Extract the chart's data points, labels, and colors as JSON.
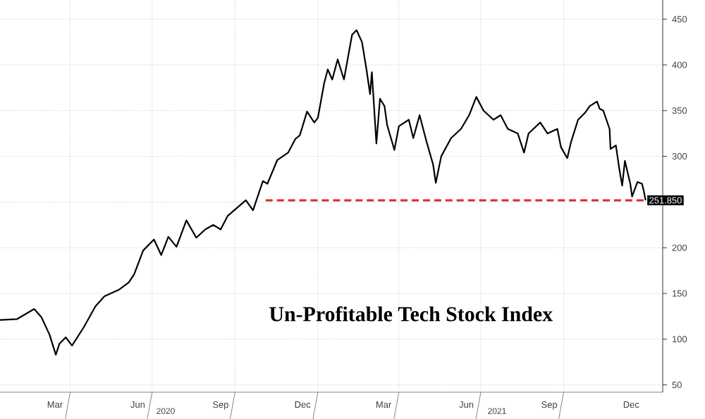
{
  "chart_data": {
    "type": "line",
    "title": "Un-Profitable Tech Stock Index",
    "xlim": [
      "2020-01-14",
      "2022-01-19"
    ],
    "ylim": [
      42,
      471
    ],
    "yticks": [
      50,
      100,
      150,
      200,
      {
        "value": 250,
        "label": null
      },
      300,
      350,
      400,
      450
    ],
    "xticks": [
      {
        "value": "2020-03-15",
        "label": "Mar"
      },
      {
        "value": "2020-04-01",
        "label": null
      },
      {
        "value": "2020-06-15",
        "label": "Jun"
      },
      {
        "value": "2020-07-01",
        "label": null
      },
      {
        "value": "2020-09-15",
        "label": "Sep"
      },
      {
        "value": "2020-10-01",
        "label": null
      },
      {
        "value": "2020-12-15",
        "label": "Dec"
      },
      {
        "value": "2021-01-01",
        "label": null
      },
      {
        "value": "2021-03-15",
        "label": "Mar"
      },
      {
        "value": "2021-04-01",
        "label": null
      },
      {
        "value": "2021-06-15",
        "label": "Jun"
      },
      {
        "value": "2021-07-01",
        "label": null
      },
      {
        "value": "2021-09-15",
        "label": "Sep"
      },
      {
        "value": "2021-10-01",
        "label": null
      },
      {
        "value": "2021-12-15",
        "label": "Dec"
      }
    ],
    "annotations": [
      "2020",
      "2021"
    ],
    "grid": true,
    "marker": "none",
    "series": [
      {
        "color": "#000000",
        "line_style": "solid",
        "x": [
          "2020-01-14",
          "2020-02-02",
          "2020-02-21",
          "2020-02-29",
          "2020-03-09",
          "2020-03-16",
          "2020-03-20",
          "2020-03-27",
          "2020-04-03",
          "2020-04-16",
          "2020-04-29",
          "2020-05-09",
          "2020-05-25",
          "2020-06-05",
          "2020-06-11",
          "2020-06-21",
          "2020-07-03",
          "2020-07-11",
          "2020-07-19",
          "2020-07-28",
          "2020-08-08",
          "2020-08-19",
          "2020-08-29",
          "2020-09-07",
          "2020-09-15",
          "2020-09-23",
          "2020-10-06",
          "2020-10-13",
          "2020-10-21",
          "2020-11-01",
          "2020-11-06",
          "2020-11-17",
          "2020-11-29",
          "2020-12-07",
          "2020-12-12",
          "2020-12-20",
          "2020-12-28",
          "2021-01-01",
          "2021-01-08",
          "2021-01-12",
          "2021-01-17",
          "2021-01-23",
          "2021-01-30",
          "2021-02-08",
          "2021-02-13",
          "2021-02-19",
          "2021-02-24",
          "2021-02-28",
          "2021-03-02",
          "2021-03-07",
          "2021-03-11",
          "2021-03-16",
          "2021-03-19",
          "2021-03-27",
          "2021-04-01",
          "2021-04-12",
          "2021-04-17",
          "2021-04-24",
          "2021-05-02",
          "2021-05-09",
          "2021-05-12",
          "2021-05-18",
          "2021-05-29",
          "2021-06-09",
          "2021-06-18",
          "2021-06-26",
          "2021-07-04",
          "2021-07-15",
          "2021-07-23",
          "2021-07-31",
          "2021-08-11",
          "2021-08-18",
          "2021-08-23",
          "2021-09-05",
          "2021-09-13",
          "2021-09-24",
          "2021-09-28",
          "2021-10-05",
          "2021-10-09",
          "2021-10-17",
          "2021-10-25",
          "2021-10-30",
          "2021-11-07",
          "2021-11-10",
          "2021-11-14",
          "2021-11-21",
          "2021-11-22",
          "2021-11-28",
          "2021-12-02",
          "2021-12-05",
          "2021-12-08",
          "2021-12-14",
          "2021-12-16",
          "2021-12-22",
          "2021-12-27",
          "2021-12-29",
          "2021-12-31"
        ],
        "values": [
          121,
          122,
          133,
          124,
          105,
          83,
          95,
          102,
          93,
          113,
          136,
          147,
          154,
          162,
          171,
          197,
          209,
          192,
          212,
          201,
          230,
          211,
          220,
          225,
          220,
          235,
          246,
          252,
          241,
          273,
          270,
          296,
          304,
          319,
          323,
          349,
          337,
          342,
          380,
          395,
          384,
          406,
          384,
          433,
          438,
          425,
          395,
          368,
          392,
          314,
          363,
          355,
          334,
          307,
          333,
          340,
          320,
          345,
          315,
          291,
          271,
          300,
          320,
          330,
          345,
          365,
          350,
          340,
          345,
          330,
          325,
          304,
          325,
          337,
          325,
          330,
          310,
          298,
          315,
          340,
          348,
          355,
          360,
          352,
          350,
          330,
          308,
          312,
          285,
          268,
          295,
          270,
          256,
          272,
          270,
          262,
          251.85
        ],
        "value_labels": [
          null,
          null,
          null,
          null,
          null,
          null,
          null,
          null,
          null,
          null,
          null,
          null,
          null,
          null,
          null,
          null,
          null,
          null,
          null,
          null,
          null,
          null,
          null,
          null,
          null,
          null,
          null,
          null,
          null,
          null,
          null,
          null,
          null,
          null,
          null,
          null,
          null,
          null,
          null,
          null,
          null,
          null,
          null,
          null,
          null,
          null,
          null,
          null,
          null,
          null,
          null,
          null,
          null,
          null,
          null,
          null,
          null,
          null,
          null,
          null,
          null,
          null,
          null,
          null,
          null,
          null,
          null,
          null,
          null,
          null,
          null,
          null,
          null,
          null,
          null,
          null,
          null,
          null,
          null,
          null,
          null,
          null,
          null,
          null,
          null,
          null,
          null,
          null,
          null,
          null,
          null,
          null,
          null,
          null,
          null,
          null,
          "251.850"
        ]
      },
      {
        "type": "line",
        "color": "#e0262b",
        "line_style": "dashed",
        "x": [
          "2020-11-04",
          "2021-12-31"
        ],
        "values": [
          251.85,
          251.85
        ]
      }
    ]
  }
}
